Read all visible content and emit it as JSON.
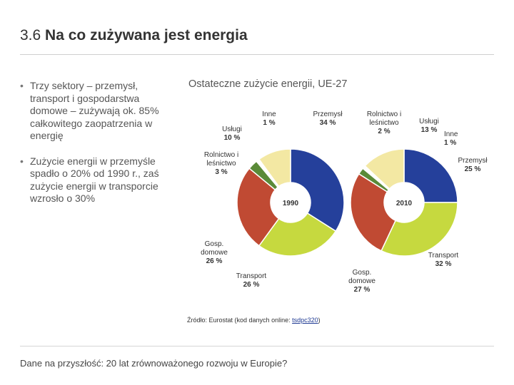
{
  "slide": {
    "number": "3.6",
    "title": "Na co zużywana jest energia"
  },
  "bullets": [
    "Trzy sektory – przemysł, transport i gospodarstwa domowe – zużywają ok. 85% całkowitego zaopatrzenia w energię",
    "Zużycie energii w przemyśle spadło o 20% od 1990 r., zaś zużycie energii w transporcie wzrosło o 30%"
  ],
  "bullet_symbol": "•",
  "source": {
    "prefix": "Źródło:",
    "text": " Eurostat (kod danych online: ",
    "link": "tsdpc320",
    "suffix": ")"
  },
  "footer": "Dane na przyszłość: 20 lat zrównoważonego rozwoju w Europie?",
  "chart_data": [
    {
      "type": "pie",
      "variant": "donut",
      "title": "Ostateczne zużycie energii, UE-27",
      "center_label": "1990",
      "categories": [
        "Przemysł",
        "Transport",
        "Gosp. domowe",
        "Rolnictwo i leśnictwo",
        "Inne",
        "Usługi"
      ],
      "values": [
        34,
        26,
        26,
        3,
        1,
        10
      ],
      "unit": "%",
      "labels": [
        [
          "Przemysł",
          "34 %"
        ],
        [
          "Transport",
          "26 %"
        ],
        [
          "Gosp.",
          "domowe",
          "26 %"
        ],
        [
          "Rolnictwo i",
          "leśnictwo",
          "3 %"
        ],
        [
          "Inne",
          "1 %"
        ],
        [
          "Usługi",
          "10 %"
        ]
      ]
    },
    {
      "type": "pie",
      "variant": "donut",
      "title": "Ostateczne zużycie energii, UE-27",
      "center_label": "2010",
      "categories": [
        "Przemysł",
        "Transport",
        "Gosp. domowe",
        "Rolnictwo i leśnictwo",
        "Inne",
        "Usługi"
      ],
      "values": [
        25,
        32,
        27,
        2,
        1,
        13
      ],
      "unit": "%",
      "labels": [
        [
          "Przemysł",
          "25 %"
        ],
        [
          "Transport",
          "32 %"
        ],
        [
          "Gosp.",
          "domowe",
          "27 %"
        ],
        [
          "Rolnictwo i",
          "leśnictwo",
          "2 %"
        ],
        [
          "Inne",
          "1 %"
        ],
        [
          "Usługi",
          "13 %"
        ]
      ]
    }
  ],
  "colors": {
    "Przemysł": "#25409b",
    "Transport": "#c6d93f",
    "Gosp. domowe": "#c04a33",
    "Rolnictwo i leśnictwo": "#5a8a38",
    "Inne": "#ffffff",
    "Usługi": "#f3e8a3"
  }
}
